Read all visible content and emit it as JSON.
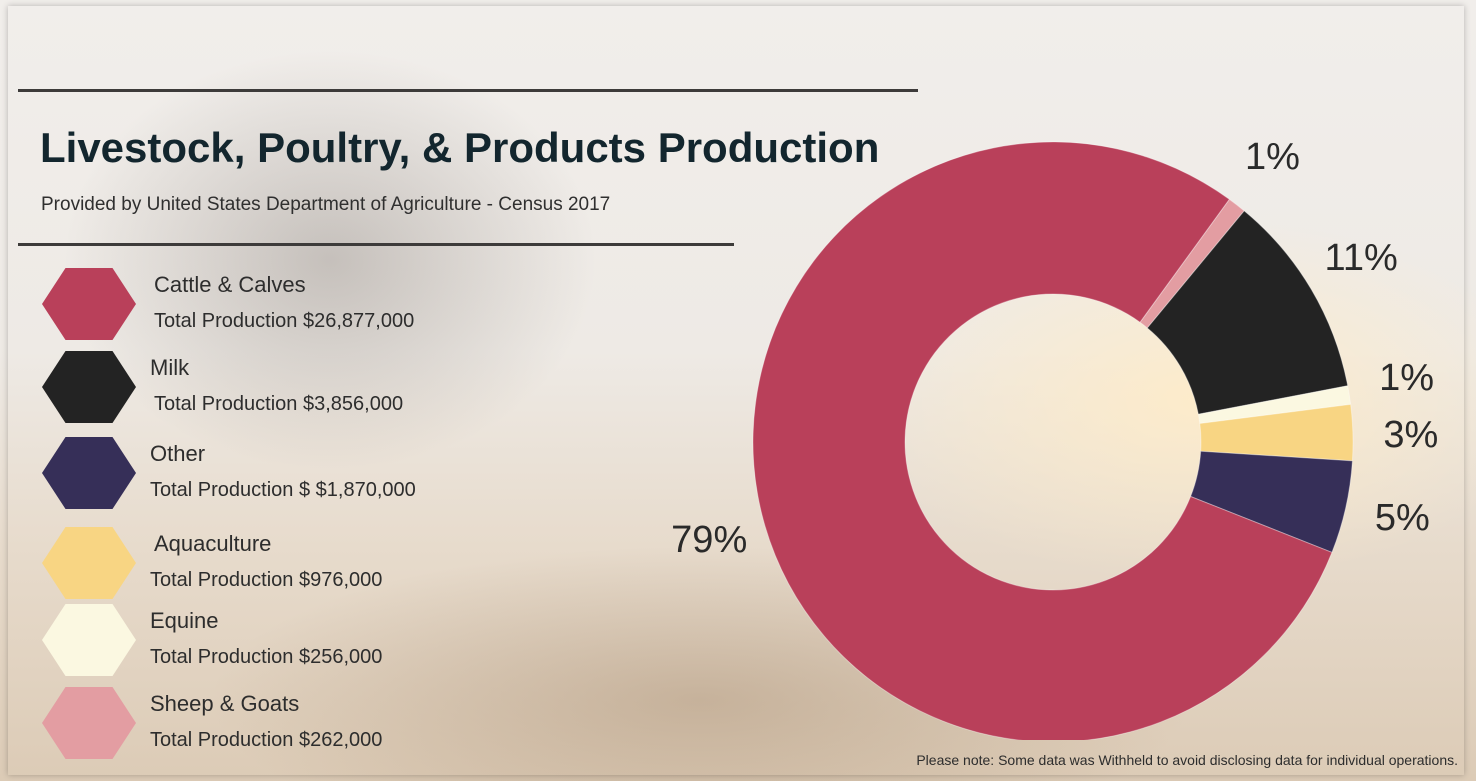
{
  "title": "Livestock, Poultry, & Products Production",
  "subtitle": "Provided by  United States Department of Agriculture - Census 2017",
  "legend": [
    {
      "name": "Cattle & Calves",
      "total": "Total Production $26,877,000",
      "color": "#b9405a"
    },
    {
      "name": "Milk",
      "total": "Total Production $3,856,000",
      "color": "#232323"
    },
    {
      "name": "Other",
      "total": "Total Production $ $1,870,000",
      "color": "#362f58"
    },
    {
      "name": "Aquaculture",
      "total": "Total Production $976,000",
      "color": "#f8d583"
    },
    {
      "name": "Equine",
      "total": "Total Production $256,000",
      "color": "#fbf8e1"
    },
    {
      "name": "Sheep & Goats",
      "total": "Total Production $262,000",
      "color": "#e39da2"
    }
  ],
  "chart_data": {
    "type": "pie",
    "donut": true,
    "start_angle_deg": 54,
    "slices": [
      {
        "label": "1%",
        "value": 1,
        "color": "#e39da2"
      },
      {
        "label": "11%",
        "value": 11,
        "color": "#232323"
      },
      {
        "label": "1%",
        "value": 1,
        "color": "#fbf8e1"
      },
      {
        "label": "3%",
        "value": 3,
        "color": "#f8d583"
      },
      {
        "label": "5%",
        "value": 5,
        "color": "#362f58"
      },
      {
        "label": "79%",
        "value": 79,
        "color": "#b9405a"
      }
    ]
  },
  "footnote": "Please note: Some data was Withheld to avoid disclosing data for individual operations."
}
